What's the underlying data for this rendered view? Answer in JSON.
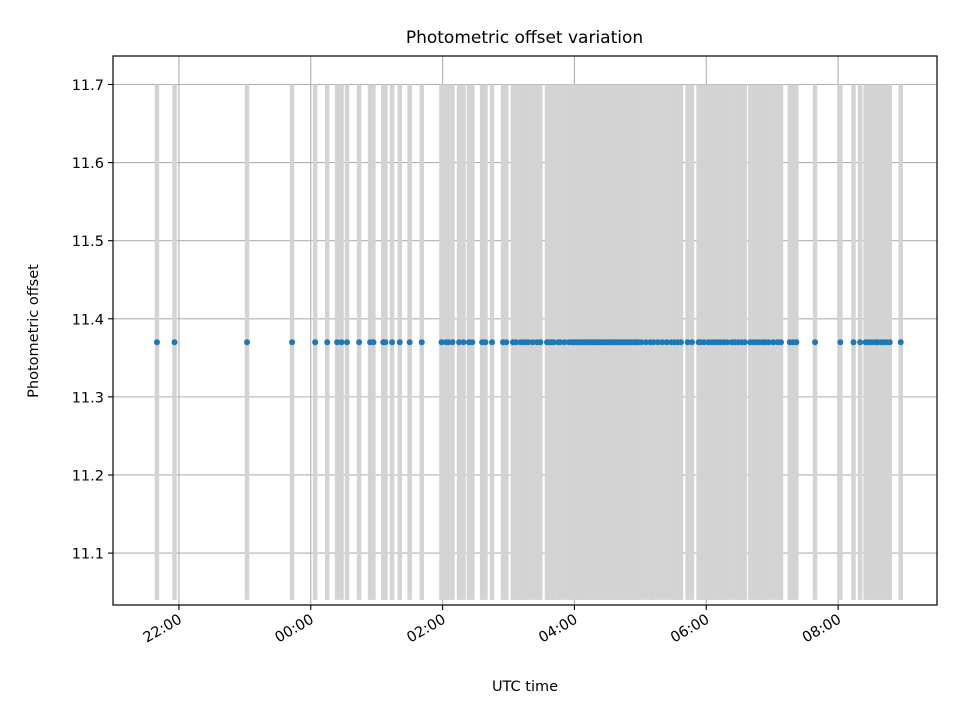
{
  "chart_data": {
    "type": "scatter",
    "title": "Photometric offset variation",
    "xlabel": "UTC time",
    "ylabel": "Photometric offset",
    "ylim": [
      11.0335,
      11.7365
    ],
    "xlim": [
      "21:00",
      "09:30"
    ],
    "x_axis": "UTC time of day (HH:MM), crossing midnight",
    "grid": true,
    "y_ticks": [
      {
        "value": 11.1,
        "label": "11.1"
      },
      {
        "value": 11.2,
        "label": "11.2"
      },
      {
        "value": 11.3,
        "label": "11.3"
      },
      {
        "value": 11.4,
        "label": "11.4"
      },
      {
        "value": 11.5,
        "label": "11.5"
      },
      {
        "value": 11.6,
        "label": "11.6"
      },
      {
        "value": 11.7,
        "label": "11.7"
      }
    ],
    "x_ticks": [
      {
        "time": "22:00",
        "label": "22:00"
      },
      {
        "time": "00:00",
        "label": "00:00"
      },
      {
        "time": "02:00",
        "label": "02:00"
      },
      {
        "time": "04:00",
        "label": "04:00"
      },
      {
        "time": "06:00",
        "label": "06:00"
      },
      {
        "time": "08:00",
        "label": "08:00"
      }
    ],
    "series": [
      {
        "marker_color": "#1f77b4",
        "bar_color": "#d3d3d3",
        "bar_ymin": 11.04,
        "bar_ymax": 11.7,
        "y": 11.37,
        "x": [
          "21:40",
          "21:56",
          "23:02",
          "23:43",
          "00:04",
          "00:15",
          "00:24",
          "00:28",
          "00:33",
          "00:44",
          "00:54",
          "00:57",
          "01:06",
          "01:08",
          "01:14",
          "01:21",
          "01:30",
          "01:41",
          "01:59",
          "02:03",
          "02:05",
          "02:09",
          "02:15",
          "02:19",
          "02:24",
          "02:27",
          "02:36",
          "02:39",
          "02:45",
          "02:55",
          "02:58",
          "03:04",
          "03:07",
          "03:11",
          "03:14",
          "03:16",
          "03:18",
          "03:22",
          "03:26",
          "03:29",
          "03:35",
          "03:37",
          "03:39",
          "03:41",
          "03:45",
          "03:47",
          "03:51",
          "03:55",
          "03:58",
          "03:59",
          "04:01",
          "04:03",
          "04:05",
          "04:07",
          "04:09",
          "04:11",
          "04:12",
          "04:14",
          "04:16",
          "04:18",
          "04:19",
          "04:21",
          "04:23",
          "04:25",
          "04:27",
          "04:29",
          "04:31",
          "04:32",
          "04:34",
          "04:36",
          "04:38",
          "04:40",
          "04:42",
          "04:44",
          "04:46",
          "04:48",
          "04:50",
          "04:52",
          "04:54",
          "04:56",
          "04:58",
          "05:01",
          "05:05",
          "05:09",
          "05:12",
          "05:16",
          "05:20",
          "05:24",
          "05:28",
          "05:31",
          "05:34",
          "05:37",
          "05:43",
          "05:47",
          "05:53",
          "05:55",
          "05:58",
          "06:02",
          "06:05",
          "06:08",
          "06:11",
          "06:13",
          "06:16",
          "06:19",
          "06:23",
          "06:26",
          "06:29",
          "06:32",
          "06:35",
          "06:40",
          "06:43",
          "06:46",
          "06:49",
          "06:52",
          "06:54",
          "06:57",
          "07:01",
          "07:05",
          "07:08",
          "07:16",
          "07:19",
          "07:22",
          "07:39",
          "08:02",
          "08:14",
          "08:20",
          "08:25",
          "08:28",
          "08:31",
          "08:34",
          "08:36",
          "08:39",
          "08:41",
          "08:44",
          "08:47",
          "08:57"
        ]
      }
    ]
  }
}
